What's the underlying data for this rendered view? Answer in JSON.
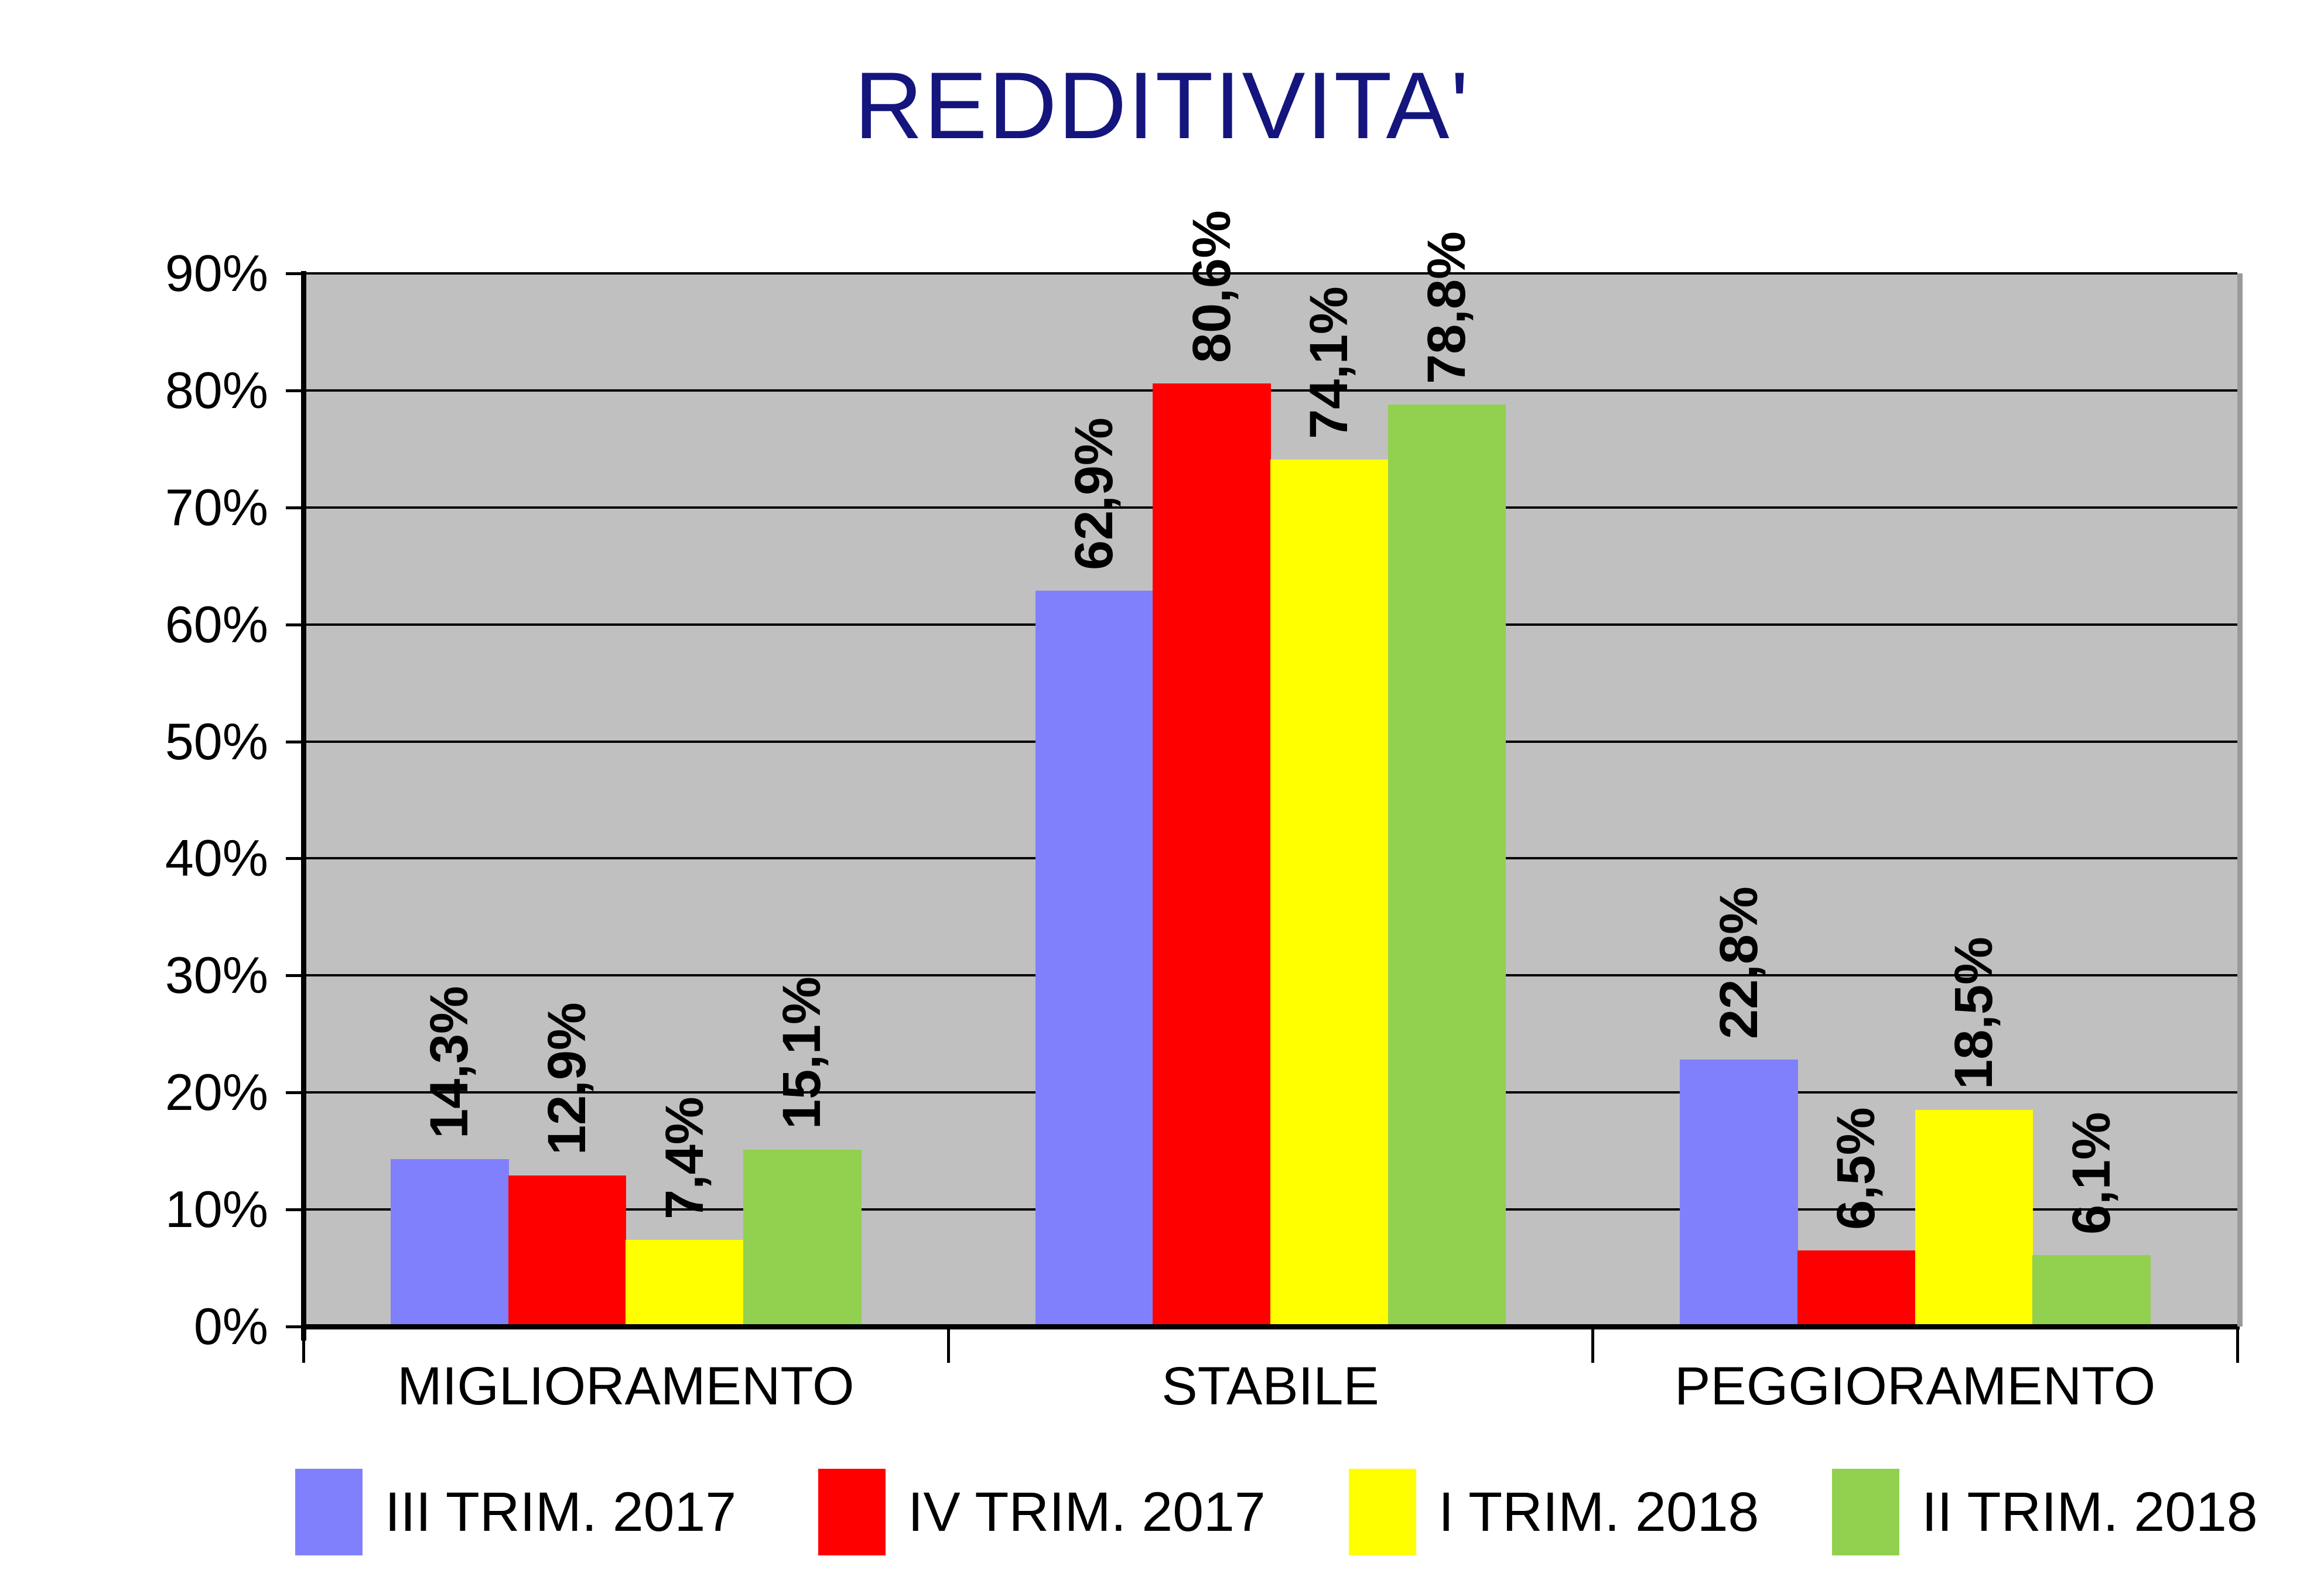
{
  "title_color": "#15157E",
  "chart_data": {
    "type": "bar",
    "title": "REDDITIVITA'",
    "categories": [
      "MIGLIORAMENTO",
      "STABILE",
      "PEGGIORAMENTO"
    ],
    "series": [
      {
        "name": "III TRIM. 2017",
        "color": "#8080FC",
        "values": [
          14.3,
          62.9,
          22.8
        ],
        "labels": [
          "14,3%",
          "62,9%",
          "22,8%"
        ]
      },
      {
        "name": "IV TRIM. 2017",
        "color": "#FF0000",
        "values": [
          12.9,
          80.6,
          6.5
        ],
        "labels": [
          "12,9%",
          "80,6%",
          "6,5%"
        ]
      },
      {
        "name": "I TRIM. 2018",
        "color": "#FFFF00",
        "values": [
          7.4,
          74.1,
          18.5
        ],
        "labels": [
          "7,4%",
          "74,1%",
          "18,5%"
        ]
      },
      {
        "name": "II TRIM. 2018",
        "color": "#92D050",
        "values": [
          15.1,
          78.8,
          6.1
        ],
        "labels": [
          "15,1%",
          "78,8%",
          "6,1%"
        ]
      }
    ],
    "ylim": [
      0,
      90
    ],
    "ytick_step": 10,
    "ytick_labels": [
      "0%",
      "10%",
      "20%",
      "30%",
      "40%",
      "50%",
      "60%",
      "70%",
      "80%",
      "90%"
    ],
    "grid": true,
    "plot_bg": "#C0C0C0",
    "gridline_color": "#000000",
    "legend_position": "bottom",
    "data_label_rotation": -90
  }
}
